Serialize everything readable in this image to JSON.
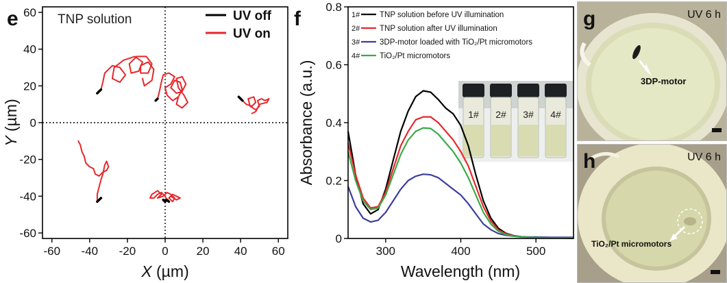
{
  "chart_data": [
    {
      "panel": "e",
      "type": "scatter",
      "title": "TNP solution",
      "xlabel": "X (µm)",
      "ylabel": "Y (µm)",
      "xlim": [
        -65,
        65
      ],
      "ylim": [
        -63,
        63
      ],
      "xticks": [
        -60,
        -40,
        -20,
        0,
        20,
        40,
        60
      ],
      "yticks": [
        -60,
        -40,
        -20,
        0,
        20,
        40,
        60
      ],
      "legend_position": "top-right",
      "series": [
        {
          "name": "UV off",
          "color": "#000000",
          "tracks": [
            [
              [
                -36,
                16
              ],
              [
                -35,
                17
              ],
              [
                -34,
                18
              ]
            ],
            [
              [
                -5,
                12
              ],
              [
                -4,
                13
              ]
            ],
            [
              [
                39,
                14
              ],
              [
                40,
                13
              ],
              [
                41,
                12
              ]
            ],
            [
              [
                -36,
                -43
              ],
              [
                -35,
                -42
              ],
              [
                -34,
                -41
              ]
            ],
            [
              [
                -1,
                -42
              ],
              [
                0,
                -43
              ],
              [
                1,
                -42
              ],
              [
                2,
                -43
              ]
            ]
          ]
        },
        {
          "name": "UV on",
          "color": "#e8262a",
          "tracks": [
            [
              [
                -34,
                18
              ],
              [
                -33,
                22
              ],
              [
                -32,
                27
              ],
              [
                -28,
                31
              ],
              [
                -24,
                30
              ],
              [
                -21,
                26
              ],
              [
                -24,
                22
              ],
              [
                -28,
                24
              ],
              [
                -27,
                30
              ],
              [
                -22,
                34
              ],
              [
                -16,
                36
              ],
              [
                -12,
                33
              ],
              [
                -14,
                28
              ],
              [
                -18,
                27
              ],
              [
                -19,
                32
              ],
              [
                -15,
                36
              ],
              [
                -10,
                36
              ],
              [
                -7,
                32
              ],
              [
                -9,
                27
              ],
              [
                -13,
                27
              ],
              [
                -13,
                31
              ],
              [
                -9,
                33
              ],
              [
                -6,
                29
              ],
              [
                -7,
                23
              ],
              [
                -11,
                20
              ],
              [
                -12,
                24
              ]
            ],
            [
              [
                -4,
                13
              ],
              [
                -3,
                17
              ],
              [
                -2,
                22
              ],
              [
                -1,
                26
              ],
              [
                2,
                27
              ],
              [
                5,
                25
              ],
              [
                3,
                21
              ],
              [
                0,
                19
              ],
              [
                1,
                15
              ],
              [
                4,
                12
              ],
              [
                7,
                14
              ],
              [
                9,
                18
              ],
              [
                8,
                22
              ],
              [
                5,
                23
              ],
              [
                3,
                19
              ],
              [
                6,
                16
              ],
              [
                9,
                17
              ],
              [
                11,
                21
              ],
              [
                9,
                25
              ],
              [
                6,
                24
              ],
              [
                7,
                19
              ],
              [
                10,
                15
              ],
              [
                12,
                11
              ],
              [
                9,
                8
              ],
              [
                6,
                10
              ],
              [
                7,
                14
              ]
            ],
            [
              [
                41,
                12
              ],
              [
                43,
                10
              ],
              [
                46,
                9
              ],
              [
                48,
                11
              ],
              [
                47,
                14
              ],
              [
                44,
                13
              ],
              [
                45,
                9
              ],
              [
                48,
                7
              ],
              [
                50,
                9
              ],
              [
                49,
                12
              ],
              [
                51,
                13
              ],
              [
                53,
                12
              ],
              [
                55,
                13
              ],
              [
                54,
                11
              ],
              [
                50,
                10
              ],
              [
                48,
                6
              ],
              [
                46,
                5
              ]
            ],
            [
              [
                -46,
                -10
              ],
              [
                -45,
                -12
              ],
              [
                -44,
                -16
              ],
              [
                -43,
                -18
              ],
              [
                -42,
                -22
              ],
              [
                -40,
                -24
              ],
              [
                -38,
                -25
              ],
              [
                -37,
                -28
              ],
              [
                -35,
                -29
              ],
              [
                -33,
                -27
              ],
              [
                -31,
                -26
              ],
              [
                -30,
                -24
              ],
              [
                -31,
                -21
              ],
              [
                -32,
                -23
              ],
              [
                -33,
                -28
              ],
              [
                -34,
                -31
              ],
              [
                -35,
                -35
              ],
              [
                -36,
                -39
              ],
              [
                -36,
                -43
              ]
            ],
            [
              [
                1,
                -42
              ],
              [
                0,
                -40
              ],
              [
                -2,
                -38
              ],
              [
                -4,
                -39
              ],
              [
                -6,
                -41
              ],
              [
                -8,
                -41
              ],
              [
                -7,
                -39
              ],
              [
                -4,
                -37
              ],
              [
                -2,
                -39
              ],
              [
                -4,
                -41
              ],
              [
                -1,
                -40
              ],
              [
                1,
                -38
              ],
              [
                3,
                -39
              ],
              [
                5,
                -41
              ],
              [
                4,
                -43
              ],
              [
                2,
                -41
              ],
              [
                4,
                -39
              ],
              [
                6,
                -40
              ],
              [
                8,
                -41
              ],
              [
                6,
                -42
              ],
              [
                3,
                -40
              ]
            ]
          ]
        }
      ]
    },
    {
      "panel": "f",
      "type": "line",
      "xlabel": "Wavelength (nm)",
      "ylabel": "Absorbance (a.u.)",
      "xlim": [
        250,
        550
      ],
      "ylim": [
        0,
        0.8
      ],
      "xticks": [
        300,
        400,
        500
      ],
      "yticks": [
        0,
        0.2,
        0.4,
        0.6,
        0.8
      ],
      "legend_position": "top-right",
      "series": [
        {
          "num": "1",
          "name": "TNP solution before UV illumination",
          "color": "#000000",
          "x": [
            250,
            260,
            270,
            280,
            290,
            300,
            310,
            320,
            330,
            340,
            350,
            360,
            370,
            380,
            390,
            400,
            410,
            420,
            430,
            440,
            450,
            460,
            470,
            480,
            490,
            500,
            520,
            550
          ],
          "y": [
            0.37,
            0.22,
            0.12,
            0.085,
            0.1,
            0.17,
            0.27,
            0.37,
            0.44,
            0.49,
            0.51,
            0.505,
            0.48,
            0.45,
            0.43,
            0.39,
            0.32,
            0.22,
            0.13,
            0.07,
            0.035,
            0.018,
            0.01,
            0.006,
            0.004,
            0.003,
            0.002,
            0.001
          ]
        },
        {
          "num": "2",
          "name": "TNP solution after UV illumination",
          "color": "#e8262a",
          "x": [
            250,
            260,
            270,
            280,
            290,
            300,
            310,
            320,
            330,
            340,
            350,
            360,
            370,
            380,
            390,
            400,
            410,
            420,
            430,
            440,
            450,
            460,
            470,
            480,
            490,
            500,
            520,
            550
          ],
          "y": [
            0.33,
            0.22,
            0.14,
            0.105,
            0.11,
            0.16,
            0.24,
            0.32,
            0.37,
            0.41,
            0.42,
            0.42,
            0.4,
            0.37,
            0.34,
            0.3,
            0.25,
            0.18,
            0.11,
            0.06,
            0.03,
            0.016,
            0.009,
            0.006,
            0.004,
            0.003,
            0.002,
            0.002
          ]
        },
        {
          "num": "3",
          "name": "3DP-motor loaded with TiO₂/Pt micromotors",
          "color": "#3a3e9b",
          "x": [
            250,
            260,
            270,
            280,
            290,
            300,
            310,
            320,
            330,
            340,
            350,
            360,
            370,
            380,
            390,
            400,
            410,
            420,
            430,
            440,
            450,
            460,
            470,
            480,
            490,
            500,
            520,
            550
          ],
          "y": [
            0.18,
            0.11,
            0.07,
            0.057,
            0.063,
            0.09,
            0.13,
            0.17,
            0.2,
            0.215,
            0.222,
            0.22,
            0.21,
            0.19,
            0.17,
            0.15,
            0.12,
            0.085,
            0.05,
            0.03,
            0.017,
            0.011,
            0.008,
            0.006,
            0.005,
            0.005,
            0.004,
            0.004
          ]
        },
        {
          "num": "4",
          "name": "TiO₂/Pt micromotors",
          "color": "#3aaa48",
          "x": [
            250,
            260,
            270,
            280,
            290,
            300,
            310,
            320,
            330,
            340,
            350,
            360,
            370,
            380,
            390,
            400,
            410,
            420,
            430,
            440,
            450,
            460,
            470,
            480,
            490,
            500,
            520,
            550
          ],
          "y": [
            0.3,
            0.2,
            0.13,
            0.1,
            0.105,
            0.15,
            0.22,
            0.29,
            0.34,
            0.37,
            0.382,
            0.38,
            0.36,
            0.33,
            0.3,
            0.26,
            0.21,
            0.15,
            0.09,
            0.05,
            0.025,
            0.013,
            0.008,
            0.005,
            0.004,
            0.003,
            0.002,
            0.002
          ]
        }
      ],
      "inset_vial_labels": [
        "1#",
        "2#",
        "3#",
        "4#"
      ]
    }
  ],
  "photos": [
    {
      "panel": "g",
      "corner_label": "UV 6 h",
      "annotation": "3DP-motor"
    },
    {
      "panel": "h",
      "corner_label": "UV 6 h",
      "annotation": "TiO₂/Pt micromotors"
    }
  ]
}
